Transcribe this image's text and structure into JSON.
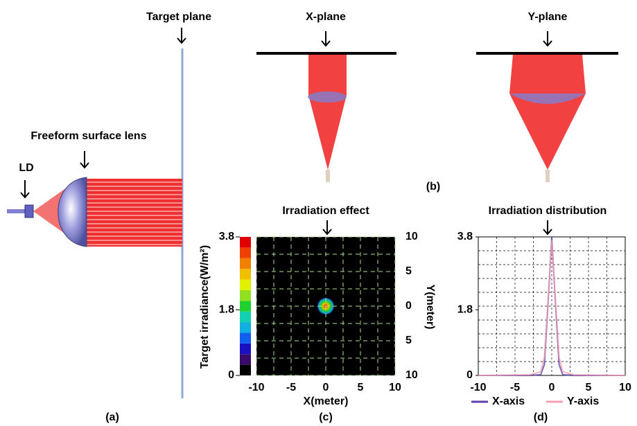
{
  "labels": {
    "target_plane": "Target plane",
    "x_plane": "X-plane",
    "y_plane": "Y-plane",
    "freeform": "Freeform surface lens",
    "ld": "LD",
    "a": "(a)",
    "b": "(b)",
    "c": "(c)",
    "d": "(d)"
  },
  "chart_data": [
    {
      "type": "heatmap",
      "title": "Irradiation effect",
      "xlabel": "X(meter)",
      "ylabel": "Y(meter)",
      "xlim": [
        -10,
        10
      ],
      "xticks": [
        -10,
        -5,
        0,
        5,
        10
      ],
      "ylim": [
        -10,
        10
      ],
      "yticks": [
        {
          "value": -10,
          "label": "10"
        },
        {
          "value": -5,
          "label": "5"
        },
        0,
        5,
        10
      ],
      "grid": true,
      "colorbar": {
        "label": "Target irradiance(W/m²)",
        "lim": [
          0,
          3.8
        ],
        "ticks": [
          0,
          1.8,
          3.8
        ],
        "colors": [
          "#000000",
          "#3a0a6a",
          "#1a10c0",
          "#1060f0",
          "#10b0e0",
          "#10d0b0",
          "#20d030",
          "#90e020",
          "#e0f000",
          "#f0c000",
          "#f08000",
          "#f04000",
          "#e00000"
        ]
      },
      "spot": {
        "x": 0,
        "y": 0,
        "peak": 3.8,
        "radius": 1.3
      }
    },
    {
      "type": "line",
      "title": "Irradiation distribution",
      "xlim": [
        -10,
        10
      ],
      "xticks": [
        -10,
        -5,
        0,
        5,
        10
      ],
      "ylim": [
        0,
        3.8
      ],
      "yticks": [
        0,
        1.8,
        3.8
      ],
      "grid": true,
      "x": [
        -10,
        -3,
        -1.5,
        -1,
        -0.5,
        0,
        0.5,
        1,
        1.5,
        3,
        10
      ],
      "series": [
        {
          "name": "X-axis",
          "color": "#5a40a8",
          "values": [
            0,
            0,
            0.02,
            0.3,
            2.0,
            3.8,
            2.0,
            0.3,
            0.02,
            0,
            0
          ]
        },
        {
          "name": "Y-axis",
          "color": "#f4a0b4",
          "values": [
            0,
            0.02,
            0.1,
            0.5,
            2.1,
            3.7,
            2.1,
            0.5,
            0.1,
            0.02,
            0
          ]
        }
      ]
    }
  ]
}
